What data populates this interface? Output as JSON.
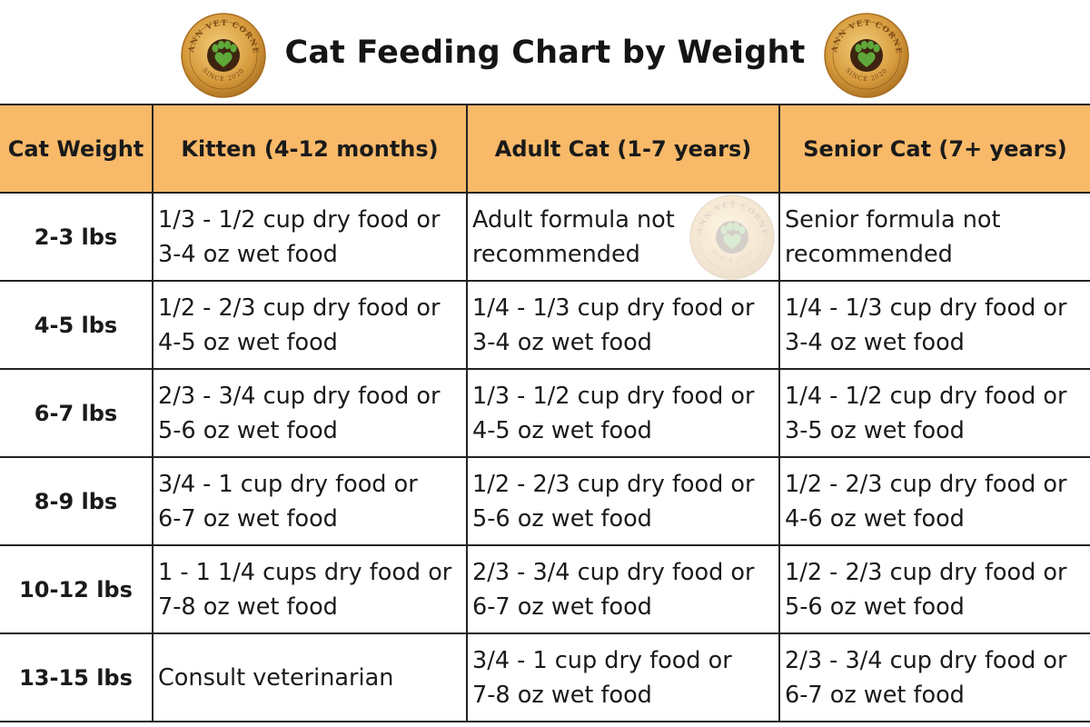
{
  "chart_data": {
    "type": "table",
    "title": "Cat Feeding Chart by Weight",
    "columns": [
      "Cat Weight",
      "Kitten (4-12 months)",
      "Adult Cat (1-7 years)",
      "Senior Cat (7+ years)"
    ],
    "rows": [
      {
        "weight": "2-3 lbs",
        "kitten": [
          "1/3 - 1/2 cup dry food or",
          "3-4 oz wet food"
        ],
        "adult": [
          "Adult formula not",
          "recommended"
        ],
        "senior": [
          "Senior formula not",
          "recommended"
        ]
      },
      {
        "weight": "4-5 lbs",
        "kitten": [
          "1/2 - 2/3 cup dry food or",
          "4-5 oz wet food"
        ],
        "adult": [
          "1/4 - 1/3 cup dry food or",
          "3-4 oz wet food"
        ],
        "senior": [
          "1/4 - 1/3 cup dry food or",
          "3-4 oz wet food"
        ]
      },
      {
        "weight": "6-7 lbs",
        "kitten": [
          "2/3 - 3/4 cup dry food or",
          "5-6 oz wet food"
        ],
        "adult": [
          "1/3 - 1/2 cup dry food or",
          "4-5 oz wet food"
        ],
        "senior": [
          "1/4 - 1/2 cup dry food or",
          "3-5 oz wet food"
        ]
      },
      {
        "weight": "8-9 lbs",
        "kitten": [
          "3/4 - 1 cup dry food or",
          "6-7 oz wet food"
        ],
        "adult": [
          "1/2 - 2/3 cup dry food or",
          "5-6 oz wet food"
        ],
        "senior": [
          "1/2 - 2/3 cup dry food or",
          "4-6 oz wet food"
        ]
      },
      {
        "weight": "10-12 lbs",
        "kitten": [
          "1 - 1 1/4 cups dry food or",
          "7-8 oz wet food"
        ],
        "adult": [
          "2/3 - 3/4 cup dry food or",
          "6-7 oz wet food"
        ],
        "senior": [
          "1/2 - 2/3 cup dry food or",
          "5-6 oz wet food"
        ]
      },
      {
        "weight": "13-15 lbs",
        "kitten": [
          "Consult veterinarian"
        ],
        "adult": [
          "3/4 - 1 cup dry food or",
          "7-8 oz wet food"
        ],
        "senior": [
          "2/3 - 3/4 cup dry food or",
          "6-7 oz wet food"
        ]
      }
    ]
  },
  "logo": {
    "text_top": "MANN VET CORNER",
    "text_bottom": "SINCE 2020",
    "icon": "paw-heart-icon"
  },
  "colors": {
    "header_fill": "#f8b969",
    "logo_gold": "#d69a3c",
    "logo_dark": "#7b4a16",
    "paw_green": "#5fa83a",
    "border": "#222222"
  }
}
